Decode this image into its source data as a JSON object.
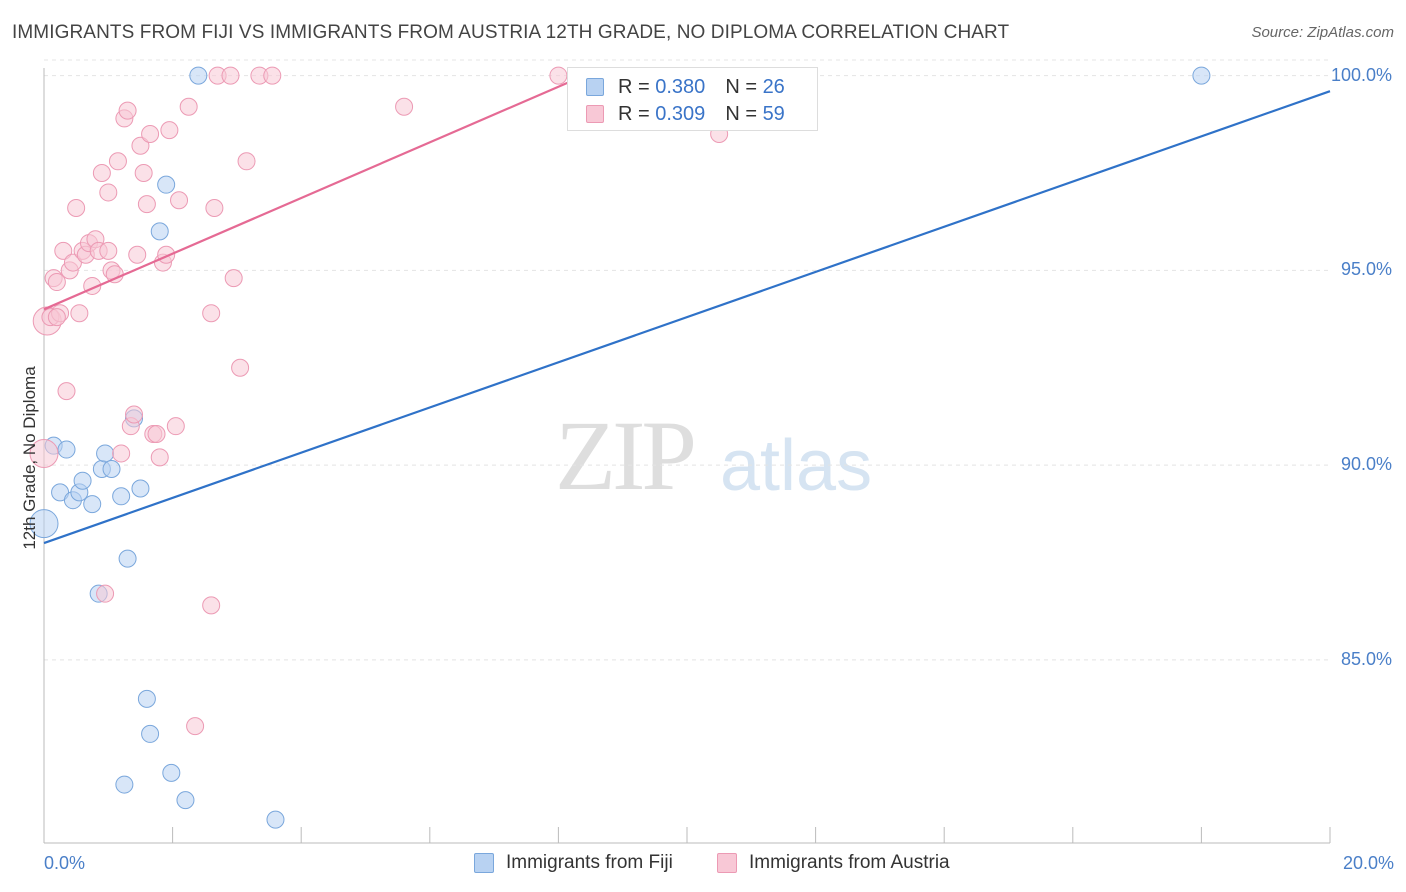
{
  "header": {
    "title": "IMMIGRANTS FROM FIJI VS IMMIGRANTS FROM AUSTRIA 12TH GRADE, NO DIPLOMA CORRELATION CHART",
    "source": "Source: ZipAtlas.com"
  },
  "watermark": {
    "zip": "ZIP",
    "atlas": "atlas"
  },
  "legend": {
    "r_label": "R =",
    "n_label": "N =",
    "fiji": {
      "r": "0.380",
      "n": "26"
    },
    "austria": {
      "r": "0.309",
      "n": "59"
    }
  },
  "colors": {
    "fiji_fill": "#b8d2f2",
    "fiji_stroke": "#7aa7dc",
    "fiji_line": "#2f72c8",
    "austria_fill": "#f8c8d6",
    "austria_stroke": "#ec9ab4",
    "austria_line": "#e56a94"
  },
  "chart_data": {
    "type": "scatter",
    "xlabel": "",
    "ylabel": "12th Grade, No Diploma",
    "xlim": [
      0,
      20
    ],
    "ylim": [
      80.3,
      100.4
    ],
    "x_tick_labels": [
      "0.0%",
      "20.0%"
    ],
    "y_ticks": [
      100,
      95,
      90,
      85
    ],
    "y_tick_labels": [
      "100.0%",
      "95.0%",
      "90.0%",
      "85.0%"
    ],
    "series": [
      {
        "name": "Immigrants from Fiji",
        "r": 0.38,
        "n": 26,
        "trend": [
          [
            0,
            88.0
          ],
          [
            20,
            99.6
          ]
        ],
        "points": [
          [
            0.0,
            88.5
          ],
          [
            0.15,
            90.5
          ],
          [
            0.35,
            90.4
          ],
          [
            0.25,
            89.3
          ],
          [
            0.45,
            89.1
          ],
          [
            0.55,
            89.3
          ],
          [
            0.6,
            89.6
          ],
          [
            0.75,
            89.0
          ],
          [
            0.85,
            86.7
          ],
          [
            0.9,
            89.9
          ],
          [
            0.95,
            90.3
          ],
          [
            1.05,
            89.9
          ],
          [
            1.2,
            89.2
          ],
          [
            1.3,
            87.6
          ],
          [
            1.4,
            91.2
          ],
          [
            1.5,
            89.4
          ],
          [
            1.6,
            84.0
          ],
          [
            1.65,
            83.1
          ],
          [
            1.8,
            96.0
          ],
          [
            1.9,
            97.2
          ],
          [
            1.98,
            82.1
          ],
          [
            2.2,
            81.4
          ],
          [
            2.4,
            100.0
          ],
          [
            3.6,
            80.9
          ],
          [
            1.25,
            81.8
          ],
          [
            18.0,
            100.0
          ]
        ]
      },
      {
        "name": "Immigrants from Austria",
        "r": 0.309,
        "n": 59,
        "trend": [
          [
            0,
            94.0
          ],
          [
            8.4,
            100.0
          ]
        ],
        "points": [
          [
            0.0,
            90.3
          ],
          [
            0.05,
            93.7
          ],
          [
            0.1,
            93.8
          ],
          [
            0.15,
            94.8
          ],
          [
            0.2,
            94.7
          ],
          [
            0.25,
            93.9
          ],
          [
            0.3,
            95.5
          ],
          [
            0.35,
            91.9
          ],
          [
            0.4,
            95.0
          ],
          [
            0.45,
            95.2
          ],
          [
            0.5,
            96.6
          ],
          [
            0.55,
            93.9
          ],
          [
            0.6,
            95.5
          ],
          [
            0.65,
            95.4
          ],
          [
            0.7,
            95.7
          ],
          [
            0.75,
            94.6
          ],
          [
            0.8,
            95.8
          ],
          [
            0.85,
            95.5
          ],
          [
            0.9,
            97.5
          ],
          [
            0.95,
            86.7
          ],
          [
            1.0,
            97.0
          ],
          [
            1.05,
            95.0
          ],
          [
            1.1,
            94.9
          ],
          [
            1.15,
            97.8
          ],
          [
            1.2,
            90.3
          ],
          [
            1.25,
            98.9
          ],
          [
            1.3,
            99.1
          ],
          [
            1.35,
            91.0
          ],
          [
            1.4,
            91.3
          ],
          [
            1.45,
            95.4
          ],
          [
            1.5,
            98.2
          ],
          [
            1.55,
            97.5
          ],
          [
            1.6,
            96.7
          ],
          [
            1.65,
            98.5
          ],
          [
            1.7,
            90.8
          ],
          [
            1.75,
            90.8
          ],
          [
            1.8,
            90.2
          ],
          [
            1.85,
            95.2
          ],
          [
            1.9,
            95.4
          ],
          [
            1.95,
            98.6
          ],
          [
            2.05,
            91.0
          ],
          [
            2.1,
            96.8
          ],
          [
            2.25,
            99.2
          ],
          [
            2.35,
            83.3
          ],
          [
            2.6,
            93.9
          ],
          [
            2.65,
            96.6
          ],
          [
            2.6,
            86.4
          ],
          [
            2.7,
            100.0
          ],
          [
            2.9,
            100.0
          ],
          [
            2.95,
            94.8
          ],
          [
            3.05,
            92.5
          ],
          [
            3.15,
            97.8
          ],
          [
            3.35,
            100.0
          ],
          [
            3.55,
            100.0
          ],
          [
            5.6,
            99.2
          ],
          [
            8.0,
            100.0
          ],
          [
            10.5,
            98.5
          ],
          [
            1.0,
            95.5
          ],
          [
            0.2,
            93.8
          ]
        ]
      }
    ]
  }
}
